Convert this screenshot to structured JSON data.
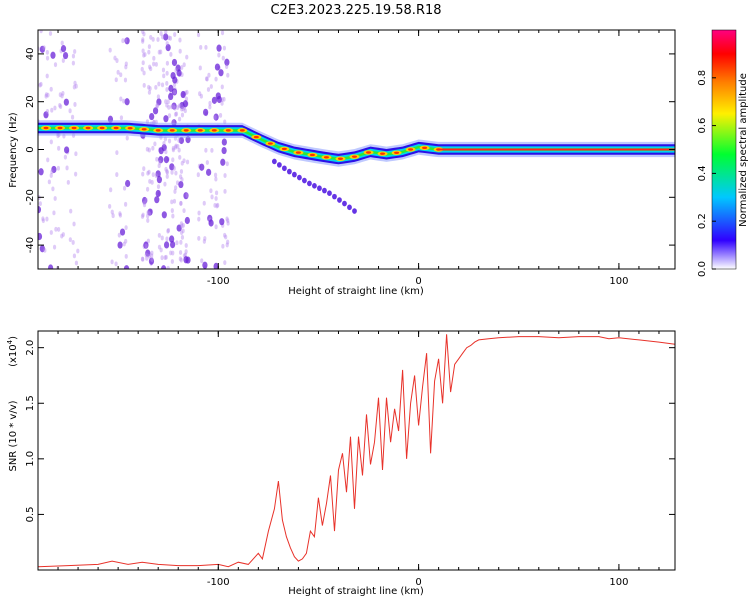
{
  "title": "C2E3.2023.225.19.58.R18",
  "chart_data": [
    {
      "type": "heatmap",
      "xlabel": "Height of straight line (km)",
      "ylabel": "Frequency (Hz)",
      "xlim": [
        -190,
        128
      ],
      "ylim": [
        -50,
        50
      ],
      "xticks": [
        -100,
        0,
        100
      ],
      "xtick_labels": [
        "-100",
        "0",
        "100"
      ],
      "yticks": [
        -40,
        -20,
        0,
        20,
        40
      ],
      "ytick_labels": [
        "-40",
        "-20",
        "0",
        "20",
        "40"
      ],
      "grid": false,
      "ridge_line": {
        "x": [
          -190,
          -175,
          -160,
          -145,
          -130,
          -115,
          -100,
          -88,
          -78,
          -70,
          -62,
          -55,
          -48,
          -40,
          -32,
          -24,
          -16,
          -8,
          0,
          10,
          50,
          100,
          128
        ],
        "y": [
          9,
          9,
          9,
          9,
          8,
          8,
          8,
          8,
          4,
          1,
          -1,
          -2,
          -3,
          -4,
          -3,
          -1,
          -2,
          -1,
          1,
          0,
          0,
          0,
          0
        ]
      },
      "side_branch": {
        "x": [
          -72,
          -65,
          -55,
          -45,
          -38,
          -30
        ],
        "y": [
          -5,
          -9,
          -14,
          -18,
          -22,
          -27
        ]
      },
      "colorbar": {
        "label": "Normalized spectral amplitude",
        "range": [
          0,
          1
        ],
        "ticks": [
          0.0,
          0.2,
          0.4,
          0.6,
          0.8
        ],
        "tick_labels": [
          "0.0",
          "0.2",
          "0.4",
          "0.6",
          "0.8"
        ],
        "colormap": [
          "#ffffff",
          "#3000ff",
          "#00c8ff",
          "#00ff30",
          "#fff000",
          "#ff8000",
          "#ff0000",
          "#ff0080"
        ]
      }
    },
    {
      "type": "line",
      "xlabel": "Height of straight line (km)",
      "ylabel": "SNR (10 * v/v)",
      "y_multiplier": "(x10",
      "y_multiplier_exp": "4",
      "y_multiplier_close": ")",
      "xlim": [
        -190,
        128
      ],
      "ylim": [
        0,
        2.15
      ],
      "xticks": [
        -100,
        0,
        100
      ],
      "xtick_labels": [
        "-100",
        "0",
        "100"
      ],
      "yticks": [
        0.5,
        1.0,
        1.5,
        2.0
      ],
      "ytick_labels": [
        "0.5",
        "1.0",
        "1.5",
        "2.0"
      ],
      "grid": false,
      "series": [
        {
          "color": "#e8322a",
          "x": [
            -190,
            -175,
            -160,
            -153,
            -145,
            -138,
            -130,
            -120,
            -110,
            -100,
            -95,
            -90,
            -85,
            -80,
            -78,
            -75,
            -72,
            -70,
            -68,
            -66,
            -64,
            -62,
            -60,
            -58,
            -56,
            -54,
            -52,
            -50,
            -48,
            -46,
            -44,
            -42,
            -40,
            -38,
            -36,
            -34,
            -32,
            -30,
            -28,
            -26,
            -24,
            -22,
            -20,
            -18,
            -16,
            -14,
            -12,
            -10,
            -8,
            -6,
            -4,
            -2,
            0,
            2,
            4,
            6,
            8,
            10,
            12,
            14,
            16,
            18,
            20,
            22,
            24,
            26,
            28,
            30,
            35,
            40,
            50,
            60,
            70,
            80,
            90,
            95,
            100,
            110,
            120,
            128
          ],
          "y": [
            0.03,
            0.04,
            0.05,
            0.08,
            0.05,
            0.07,
            0.05,
            0.04,
            0.04,
            0.05,
            0.03,
            0.07,
            0.05,
            0.15,
            0.1,
            0.35,
            0.55,
            0.8,
            0.45,
            0.3,
            0.2,
            0.12,
            0.08,
            0.1,
            0.15,
            0.35,
            0.3,
            0.65,
            0.4,
            0.6,
            0.85,
            0.35,
            0.9,
            1.05,
            0.7,
            1.2,
            0.55,
            1.2,
            0.85,
            1.4,
            0.95,
            1.15,
            1.55,
            0.9,
            1.55,
            1.15,
            1.45,
            1.25,
            1.8,
            1.0,
            1.5,
            1.75,
            1.3,
            1.65,
            1.95,
            1.05,
            1.7,
            1.9,
            1.5,
            2.12,
            1.6,
            1.85,
            1.9,
            1.95,
            2.0,
            2.02,
            2.05,
            2.07,
            2.08,
            2.09,
            2.1,
            2.1,
            2.09,
            2.1,
            2.1,
            2.08,
            2.09,
            2.07,
            2.05,
            2.03
          ]
        }
      ]
    }
  ]
}
